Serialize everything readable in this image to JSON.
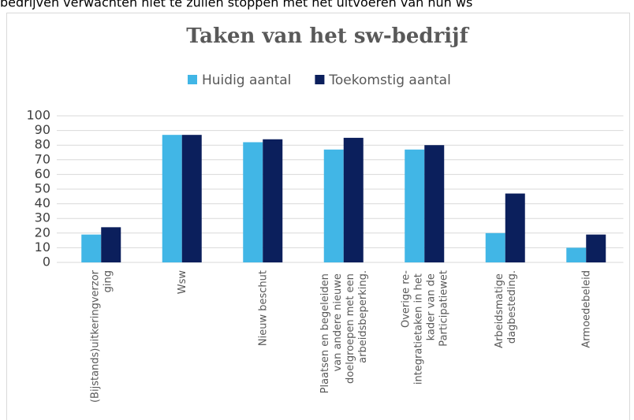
{
  "page_text": "bedrijven verwachten niet te zullen stoppen met het uitvoeren van hun ws",
  "chart_data": {
    "type": "bar",
    "title": "Taken van het sw-bedrijf",
    "categories": [
      "(Bijstands)uitkeringverzorging",
      "Wsw",
      "Nieuw beschut",
      "Plaatsen en begeleiden van andere nieuwe doelgroepen met een arbeidsbeperking.",
      "Overige re-integratietaken in het kader van de Participatiewet",
      "Arbeidsmatige dagbesteding.",
      "Armoedebeleid"
    ],
    "series": [
      {
        "name": "Huidig aantal",
        "color": "#41b6e6",
        "values": [
          19,
          87,
          82,
          77,
          77,
          20,
          10
        ]
      },
      {
        "name": "Toekomstig aantal",
        "color": "#0b1f5c",
        "values": [
          24,
          87,
          84,
          85,
          80,
          47,
          19
        ]
      }
    ],
    "ylim": [
      0,
      100
    ],
    "yticks": [
      0,
      10,
      20,
      30,
      40,
      50,
      60,
      70,
      80,
      90,
      100
    ],
    "grid": true,
    "legend": "top"
  }
}
